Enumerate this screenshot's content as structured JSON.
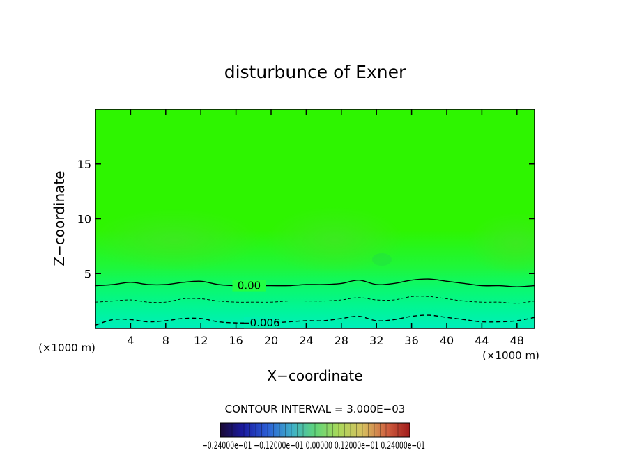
{
  "chart_data": {
    "type": "heatmap",
    "title": "disturbunce of Exner",
    "xlabel": "X−coordinate",
    "ylabel": "Z−coordinate",
    "x_unit_left": "(×1000 m)",
    "x_unit_right": "(×1000 m)",
    "xlim": [
      0,
      50
    ],
    "ylim": [
      0,
      20
    ],
    "x_ticks": [
      4,
      8,
      12,
      16,
      20,
      24,
      28,
      32,
      36,
      40,
      44,
      48
    ],
    "y_ticks": [
      5,
      10,
      15
    ],
    "contour_interval_text": "CONTOUR INTERVAL = 3.000E−03",
    "contour_labels": [
      "0.00",
      "−0.006"
    ],
    "contours": [
      {
        "level": 0.0,
        "style": "solid",
        "label": "0.00",
        "x": [
          0,
          2,
          4,
          6,
          8,
          10,
          12,
          14,
          16,
          18,
          20,
          22,
          24,
          26,
          28,
          30,
          32,
          34,
          36,
          38,
          40,
          42,
          44,
          46,
          48,
          50
        ],
        "z": [
          3.9,
          4.0,
          4.2,
          4.0,
          4.0,
          4.2,
          4.3,
          4.0,
          3.9,
          3.9,
          3.9,
          3.9,
          4.0,
          4.0,
          4.1,
          4.4,
          4.0,
          4.1,
          4.4,
          4.5,
          4.3,
          4.1,
          3.9,
          3.9,
          3.8,
          3.9
        ]
      },
      {
        "level": -0.003,
        "style": "dashed",
        "label": "",
        "x": [
          0,
          2,
          4,
          6,
          8,
          10,
          12,
          14,
          16,
          18,
          20,
          22,
          24,
          26,
          28,
          30,
          32,
          34,
          36,
          38,
          40,
          42,
          44,
          46,
          48,
          50
        ],
        "z": [
          2.4,
          2.5,
          2.6,
          2.4,
          2.4,
          2.7,
          2.7,
          2.5,
          2.4,
          2.4,
          2.4,
          2.5,
          2.5,
          2.5,
          2.6,
          2.8,
          2.6,
          2.6,
          2.9,
          2.9,
          2.7,
          2.5,
          2.4,
          2.4,
          2.3,
          2.5
        ]
      },
      {
        "level": -0.006,
        "style": "dashed",
        "label": "−0.006",
        "x": [
          0,
          2,
          4,
          6,
          8,
          10,
          12,
          14,
          16,
          18,
          20,
          22,
          24,
          26,
          28,
          30,
          32,
          34,
          36,
          38,
          40,
          42,
          44,
          46,
          48,
          50
        ],
        "z": [
          0.3,
          0.8,
          0.8,
          0.6,
          0.7,
          0.9,
          0.9,
          0.6,
          0.5,
          0.5,
          0.5,
          0.6,
          0.7,
          0.7,
          0.9,
          1.1,
          0.7,
          0.8,
          1.1,
          1.2,
          1.0,
          0.8,
          0.6,
          0.6,
          0.7,
          1.0
        ]
      }
    ],
    "colorbar": {
      "labels_text": "−0.24000e−01 −0.12000e−01 0.00000 0.12000e−01 0.24000e−01",
      "range": [
        -0.024,
        0.024
      ],
      "n_bins": 32
    },
    "colors": {
      "upper_field": "#33ff00",
      "upper_field_light": "#3df21e",
      "field_mid": "#22ff44",
      "low_field": "#00ff99",
      "bottom_field": "#00f0b4"
    },
    "grid": false
  }
}
